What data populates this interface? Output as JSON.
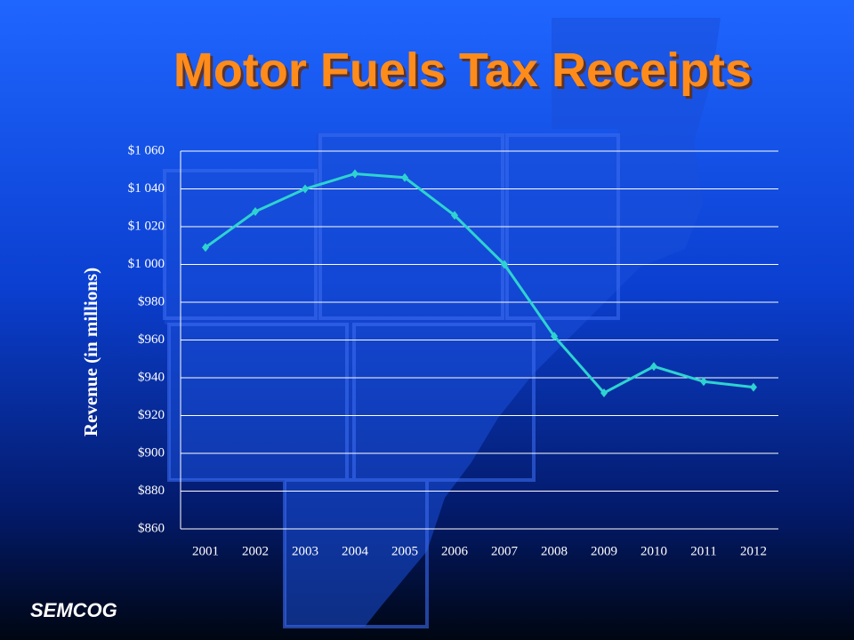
{
  "chart_data": {
    "type": "line",
    "title": "Motor Fuels Tax Receipts",
    "y_label": "Revenue (in millions)",
    "categories": [
      "2001",
      "2002",
      "2003",
      "2004",
      "2005",
      "2006",
      "2007",
      "2008",
      "2009",
      "2010",
      "2011",
      "2012"
    ],
    "series": [
      {
        "name": "Revenue",
        "color": "#2ed3d0",
        "values": [
          1009,
          1028,
          1040,
          1048,
          1046,
          1026,
          1000,
          962,
          932,
          946,
          938,
          935
        ]
      }
    ],
    "ylim": [
      860,
      1060
    ],
    "yticks": [
      {
        "value": 860,
        "label": "$860"
      },
      {
        "value": 880,
        "label": "$880"
      },
      {
        "value": 900,
        "label": "$900"
      },
      {
        "value": 920,
        "label": "$920"
      },
      {
        "value": 940,
        "label": "$940"
      },
      {
        "value": 960,
        "label": "$960"
      },
      {
        "value": 980,
        "label": "$980"
      },
      {
        "value": 1000,
        "label": "$1 000"
      },
      {
        "value": 1020,
        "label": "$1 020"
      },
      {
        "value": 1040,
        "label": "$1 040"
      },
      {
        "value": 1060,
        "label": "$1 060"
      }
    ],
    "grid": true
  },
  "footer": {
    "logo": "SEMCOG"
  }
}
